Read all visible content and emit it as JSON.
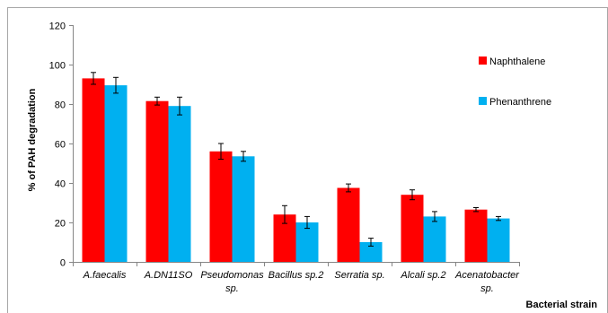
{
  "chart_data": {
    "type": "bar",
    "title": "",
    "xlabel": "Bacterial strain",
    "ylabel": "% of PAH degradation",
    "ylim": [
      0,
      120
    ],
    "yticks": [
      0,
      20,
      40,
      60,
      80,
      100,
      120
    ],
    "grid": false,
    "legend_position": "right",
    "categories": [
      [
        "A.faecalis"
      ],
      [
        "A.DN11SO"
      ],
      [
        "Pseudomonas",
        "sp."
      ],
      [
        "Bacillus sp.2"
      ],
      [
        "Serratia sp."
      ],
      [
        "Alcali sp.2"
      ],
      [
        "Acenatobacter",
        "sp."
      ]
    ],
    "series": [
      {
        "name": "Naphthalene",
        "color": "#ff0000",
        "values": [
          93,
          81.5,
          56,
          24,
          37.5,
          34,
          26.5
        ],
        "errors": [
          3,
          2,
          4,
          4.5,
          2,
          2.5,
          1
        ]
      },
      {
        "name": "Phenanthrene",
        "color": "#00b0f0",
        "values": [
          89.5,
          79,
          53.5,
          20,
          10,
          23,
          22
        ],
        "errors": [
          4,
          4.5,
          2.5,
          3,
          2,
          2.5,
          1
        ]
      }
    ]
  }
}
